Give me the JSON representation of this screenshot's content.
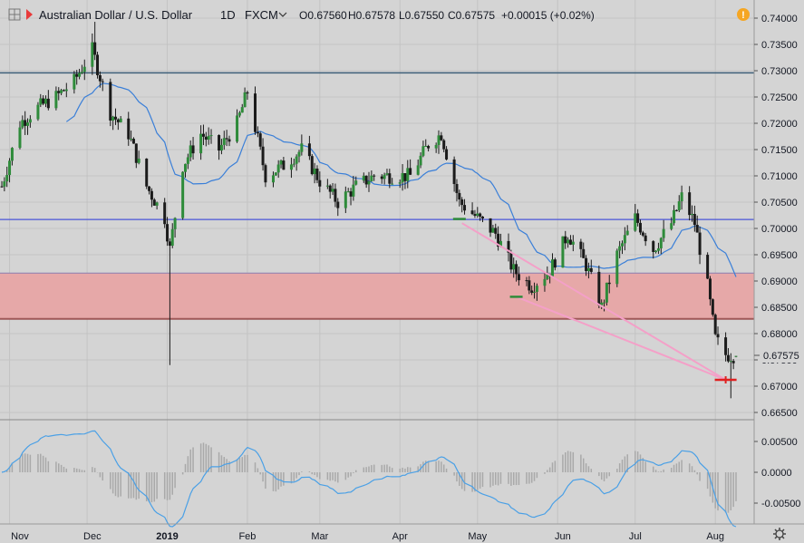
{
  "header": {
    "symbol_title": "Australian Dollar / U.S. Dollar",
    "interval": "1D",
    "exchange": "FXCM",
    "open": "O0.67560",
    "high": "H0.67578",
    "low": "L0.67550",
    "close": "C0.67575",
    "change": "+0.00015 (+0.02%)",
    "alert_glyph": "!"
  },
  "colors": {
    "background": "#d4d4d4",
    "grid": "#c3c3c3",
    "bull_candle": "#2e8b3a",
    "bear_candle": "#1b1b1b",
    "ma_line": "#3a7fd8",
    "resistance_line": "#3e5f7a",
    "support_line": "#4a55d8",
    "zone_fill": "#e6a8a8",
    "zone_border": "#a05858",
    "trend_line": "#f4a0c8",
    "target_mark": "#e02020",
    "osc_line": "#4aa0e6",
    "osc_hist": "#a9a9a9"
  },
  "price_axis": {
    "labels": [
      "0.74000",
      "0.73500",
      "0.73000",
      "0.72500",
      "0.72000",
      "0.71500",
      "0.71000",
      "0.70500",
      "0.70000",
      "0.69500",
      "0.69000",
      "0.68500",
      "0.68000",
      "0.67500",
      "0.67000",
      "0.66500"
    ],
    "current_price": "0.67575"
  },
  "osc_axis": {
    "labels": [
      "0.00500",
      "0.0000",
      "-0.00500"
    ]
  },
  "time_axis": {
    "labels": [
      "Nov",
      "Dec",
      "2019",
      "Feb",
      "Mar",
      "Apr",
      "May",
      "Jun",
      "Jul",
      "Aug"
    ]
  },
  "icons": {
    "settings": "gear-icon",
    "layout": "grid-icon",
    "symbol_marker": "red-flag-icon"
  },
  "chart_data": {
    "type": "candlestick",
    "title": "Australian Dollar / U.S. Dollar",
    "xlabel": "",
    "ylabel": "",
    "ylim": [
      0.664,
      0.741
    ],
    "grid": true,
    "ma_period": 20,
    "horizontal_levels": [
      0.7296,
      0.7017
    ],
    "zone": [
      0.6828,
      0.6915
    ],
    "trend_lines": [
      {
        "from": [
          "2019-04-25",
          0.701
        ],
        "to": [
          "2019-08-05",
          0.6712
        ]
      },
      {
        "from": [
          "2019-05-16",
          0.687
        ],
        "to": [
          "2019-08-05",
          0.6712
        ]
      }
    ],
    "markers": [
      {
        "date": "2019-04-24",
        "value": 0.7018,
        "color": "#2e8b3a"
      },
      {
        "date": "2019-05-16",
        "value": 0.687,
        "color": "#2e8b3a"
      },
      {
        "date": "2019-08-05",
        "value": 0.6712,
        "color": "#e02020"
      }
    ],
    "oscillator": {
      "name": "",
      "ylim": [
        -0.0075,
        0.0075
      ]
    },
    "anchors": [
      [
        "2018-10-29",
        0.708
      ],
      [
        "2018-11-05",
        0.72
      ],
      [
        "2018-11-12",
        0.723
      ],
      [
        "2018-11-19",
        0.725
      ],
      [
        "2018-11-26",
        0.728
      ],
      [
        "2018-12-03",
        0.734
      ],
      [
        "2018-12-10",
        0.722
      ],
      [
        "2018-12-17",
        0.718
      ],
      [
        "2018-12-24",
        0.708
      ],
      [
        "2018-12-31",
        0.702
      ],
      [
        "2019-01-02",
        0.696
      ],
      [
        "2019-01-07",
        0.712
      ],
      [
        "2019-01-14",
        0.718
      ],
      [
        "2019-01-21",
        0.715
      ],
      [
        "2019-01-28",
        0.72
      ],
      [
        "2019-02-01",
        0.726
      ],
      [
        "2019-02-08",
        0.71
      ],
      [
        "2019-02-15",
        0.712
      ],
      [
        "2019-02-22",
        0.715
      ],
      [
        "2019-03-01",
        0.709
      ],
      [
        "2019-03-08",
        0.705
      ],
      [
        "2019-03-15",
        0.708
      ],
      [
        "2019-03-22",
        0.71
      ],
      [
        "2019-03-29",
        0.71
      ],
      [
        "2019-04-05",
        0.71
      ],
      [
        "2019-04-12",
        0.716
      ],
      [
        "2019-04-17",
        0.718
      ],
      [
        "2019-04-24",
        0.705
      ],
      [
        "2019-05-01",
        0.702
      ],
      [
        "2019-05-08",
        0.699
      ],
      [
        "2019-05-15",
        0.692
      ],
      [
        "2019-05-22",
        0.689
      ],
      [
        "2019-05-29",
        0.692
      ],
      [
        "2019-06-05",
        0.699
      ],
      [
        "2019-06-12",
        0.693
      ],
      [
        "2019-06-18",
        0.685
      ],
      [
        "2019-06-24",
        0.695
      ],
      [
        "2019-07-01",
        0.702
      ],
      [
        "2019-07-08",
        0.696
      ],
      [
        "2019-07-15",
        0.701
      ],
      [
        "2019-07-19",
        0.706
      ],
      [
        "2019-07-24",
        0.701
      ],
      [
        "2019-07-29",
        0.689
      ],
      [
        "2019-08-01",
        0.679
      ],
      [
        "2019-08-05",
        0.676
      ],
      [
        "2019-08-09",
        0.6758
      ]
    ]
  }
}
